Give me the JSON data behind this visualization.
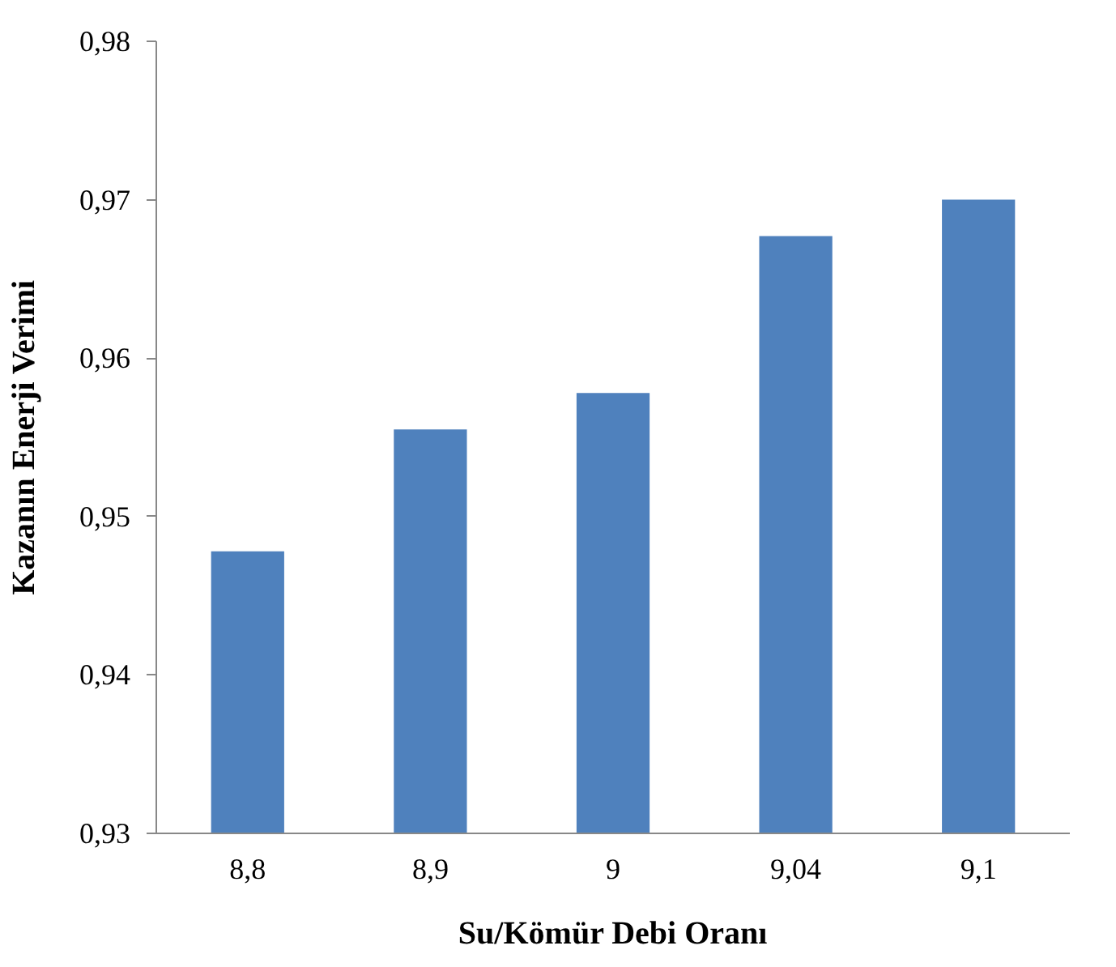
{
  "chart_data": {
    "type": "bar",
    "xlabel": "Su/Kömür Debi Oranı",
    "ylabel": "Kazanın Enerji Verimi",
    "categories": [
      "8,8",
      "8,9",
      "9",
      "9,04",
      "9,1"
    ],
    "values": [
      0.9478,
      0.9555,
      0.9578,
      0.9677,
      0.97
    ],
    "color": "#4f81bd",
    "ylim": [
      0.93,
      0.98
    ],
    "yticks": [
      {
        "value": 0.93,
        "label": "0,93"
      },
      {
        "value": 0.94,
        "label": "0,94"
      },
      {
        "value": 0.95,
        "label": "0,95"
      },
      {
        "value": 0.96,
        "label": "0,96"
      },
      {
        "value": 0.97,
        "label": "0,97"
      },
      {
        "value": 0.98,
        "label": "0,98"
      }
    ],
    "grid": false
  }
}
